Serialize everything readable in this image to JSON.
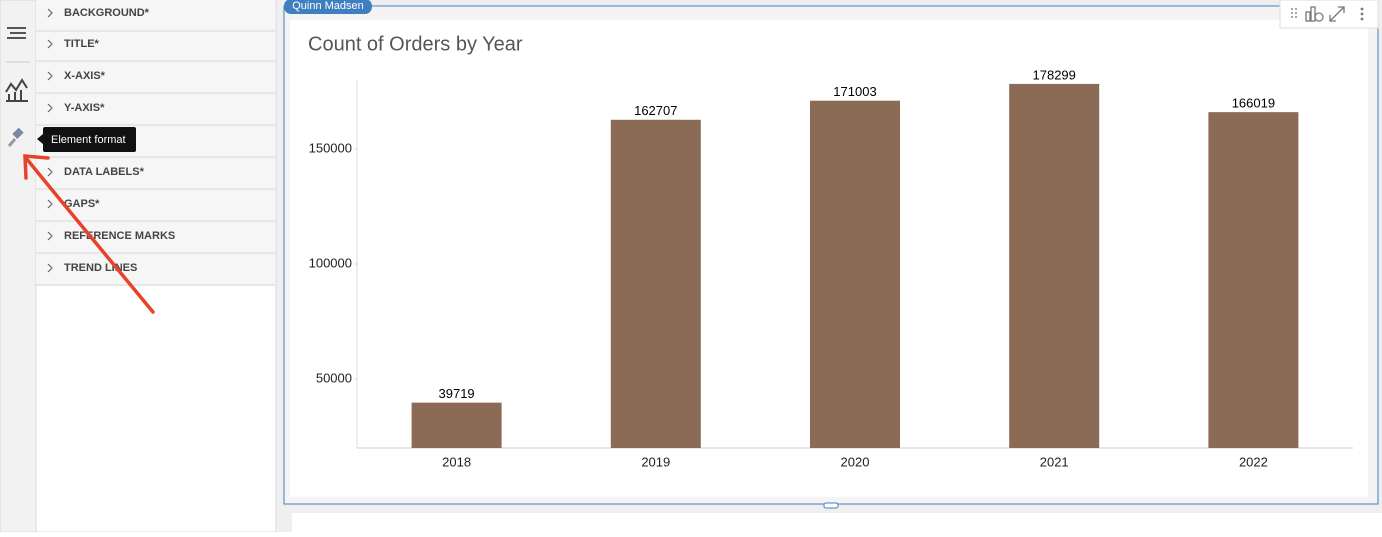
{
  "user_badge": "Quinn Madsen",
  "tooltip": "Element format",
  "panel": {
    "items": [
      "BACKGROUND*",
      "TITLE*",
      "X-AXIS*",
      "Y-AXIS*",
      "DATA LABELS*",
      "GAPS*",
      "REFERENCE MARKS",
      "TREND LINES"
    ]
  },
  "chart_data": {
    "type": "bar",
    "title": "Count of Orders by Year",
    "categories": [
      "2018",
      "2019",
      "2020",
      "2021",
      "2022"
    ],
    "values": [
      39719,
      162707,
      171003,
      178299,
      166019
    ],
    "color": "#8b6b55",
    "ylim": [
      20000,
      180000
    ],
    "yticks": [
      50000,
      100000,
      150000
    ],
    "grid": false
  }
}
